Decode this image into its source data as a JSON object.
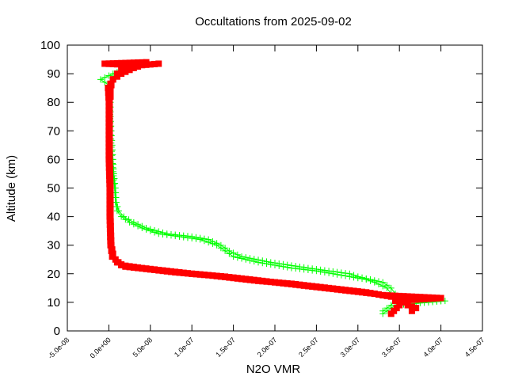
{
  "chart_data": {
    "type": "scatter",
    "title": "Occultations from 2025-09-02",
    "xlabel": "N2O VMR",
    "ylabel": "Altitude (km)",
    "xlim": [
      -5e-08,
      4.5e-07
    ],
    "ylim": [
      0,
      100
    ],
    "xticks": [
      -5e-08,
      0,
      5e-08,
      1e-07,
      1.5e-07,
      2e-07,
      2.5e-07,
      3e-07,
      3.5e-07,
      4e-07,
      4.5e-07
    ],
    "xtick_labels": [
      "-5.0e-08",
      "0.0e+00",
      "5.0e-08",
      "1.0e-07",
      "1.5e-07",
      "2.0e-07",
      "2.5e-07",
      "3.0e-07",
      "3.5e-07",
      "4.0e-07",
      "4.5e-07"
    ],
    "yticks": [
      0,
      10,
      20,
      30,
      40,
      50,
      60,
      70,
      80,
      90,
      100
    ],
    "ytick_labels": [
      "0",
      "10",
      "20",
      "30",
      "40",
      "50",
      "60",
      "70",
      "80",
      "90",
      "100"
    ],
    "grid": false,
    "series": [
      {
        "name": "green-plus",
        "color": "#00ff00",
        "marker": "plus",
        "profiles": [
          [
            [
              92,
              3e-08
            ],
            [
              91,
              1.5e-08
            ],
            [
              90,
              5e-09
            ],
            [
              88,
              -1e-08
            ],
            [
              86,
              0
            ],
            [
              84,
              2e-09
            ],
            [
              80,
              2e-09
            ],
            [
              75,
              2e-09
            ],
            [
              70,
              3e-09
            ],
            [
              65,
              4e-09
            ],
            [
              60,
              5e-09
            ],
            [
              55,
              6e-09
            ],
            [
              50,
              8e-09
            ],
            [
              45,
              9e-09
            ],
            [
              42,
              1.2e-08
            ],
            [
              40,
              1.8e-08
            ],
            [
              38,
              3e-08
            ],
            [
              36,
              4.5e-08
            ],
            [
              34,
              7e-08
            ],
            [
              33,
              1e-07
            ],
            [
              32,
              1.2e-07
            ],
            [
              30,
              1.35e-07
            ],
            [
              28,
              1.45e-07
            ],
            [
              26,
              1.6e-07
            ],
            [
              24,
              1.95e-07
            ],
            [
              22,
              2.4e-07
            ],
            [
              21,
              2.65e-07
            ],
            [
              20,
              2.9e-07
            ],
            [
              19,
              3e-07
            ],
            [
              18,
              3.15e-07
            ],
            [
              17,
              3.3e-07
            ],
            [
              15,
              3.4e-07
            ],
            [
              13,
              3.45e-07
            ],
            [
              11,
              3.5e-07
            ],
            [
              10.5,
              4.05e-07
            ],
            [
              9,
              3.45e-07
            ],
            [
              7,
              3.35e-07
            ],
            [
              6,
              3.3e-07
            ]
          ],
          [
            [
              93,
              3.5e-08
            ],
            [
              91,
              2e-08
            ],
            [
              89,
              5e-09
            ],
            [
              85,
              2e-09
            ],
            [
              80,
              1e-09
            ],
            [
              70,
              2e-09
            ],
            [
              60,
              4e-09
            ],
            [
              50,
              7e-09
            ],
            [
              45,
              8e-09
            ],
            [
              42,
              1e-08
            ],
            [
              40,
              1.5e-08
            ],
            [
              38,
              2.5e-08
            ],
            [
              36,
              4e-08
            ],
            [
              34,
              6e-08
            ],
            [
              32,
              1.1e-07
            ],
            [
              30,
              1.3e-07
            ],
            [
              28,
              1.4e-07
            ],
            [
              26,
              1.5e-07
            ],
            [
              24,
              1.8e-07
            ],
            [
              22,
              2.2e-07
            ],
            [
              21,
              2.5e-07
            ],
            [
              20,
              2.7e-07
            ],
            [
              19,
              2.9e-07
            ],
            [
              18,
              3.1e-07
            ],
            [
              17,
              3.2e-07
            ],
            [
              15,
              3.35e-07
            ],
            [
              13,
              3.4e-07
            ],
            [
              11,
              3.45e-07
            ],
            [
              9,
              3.4e-07
            ],
            [
              7,
              3.3e-07
            ]
          ]
        ]
      },
      {
        "name": "red-square",
        "color": "#ff0000",
        "marker": "square",
        "profiles": [
          [
            [
              94,
              4.5e-08
            ],
            [
              93.5,
              -5e-09
            ],
            [
              93,
              3e-08
            ],
            [
              92,
              2e-08
            ],
            [
              91,
              1.5e-08
            ],
            [
              90,
              1e-08
            ],
            [
              88,
              5e-09
            ],
            [
              86,
              3e-09
            ],
            [
              84,
              2e-09
            ],
            [
              82,
              2e-09
            ],
            [
              80,
              1e-09
            ],
            [
              75,
              1e-09
            ],
            [
              70,
              1e-09
            ],
            [
              65,
              1e-09
            ],
            [
              60,
              1e-09
            ],
            [
              55,
              1.5e-09
            ],
            [
              50,
              2e-09
            ],
            [
              45,
              2e-09
            ],
            [
              40,
              2e-09
            ],
            [
              35,
              2.5e-09
            ],
            [
              30,
              3e-09
            ],
            [
              27,
              5e-09
            ],
            [
              25,
              8e-09
            ],
            [
              23,
              1.5e-08
            ],
            [
              22,
              4e-08
            ],
            [
              21,
              7e-08
            ],
            [
              20,
              1e-07
            ],
            [
              19,
              1.4e-07
            ],
            [
              18,
              1.7e-07
            ],
            [
              17,
              2e-07
            ],
            [
              16,
              2.3e-07
            ],
            [
              15,
              2.6e-07
            ],
            [
              14,
              2.9e-07
            ],
            [
              13,
              3.2e-07
            ],
            [
              12,
              3.4e-07
            ],
            [
              11,
              3.5e-07
            ],
            [
              10,
              3.55e-07
            ],
            [
              9,
              3.6e-07
            ],
            [
              8,
              3.7e-07
            ],
            [
              7,
              3.65e-07
            ]
          ],
          [
            [
              93.5,
              6e-08
            ],
            [
              93,
              4e-08
            ],
            [
              92,
              3e-08
            ],
            [
              90,
              1.5e-08
            ],
            [
              88,
              5e-09
            ],
            [
              85,
              -1e-09
            ],
            [
              80,
              0
            ],
            [
              70,
              0
            ],
            [
              60,
              0
            ],
            [
              50,
              1e-09
            ],
            [
              40,
              1e-09
            ],
            [
              30,
              2e-09
            ],
            [
              26,
              4e-09
            ],
            [
              24,
              1e-08
            ],
            [
              22.5,
              2e-08
            ],
            [
              21.5,
              5e-08
            ],
            [
              20.5,
              8e-08
            ],
            [
              19.5,
              1.2e-07
            ],
            [
              18.5,
              1.5e-07
            ],
            [
              17.5,
              1.8e-07
            ],
            [
              16.5,
              2.2e-07
            ],
            [
              15.5,
              2.5e-07
            ],
            [
              14.5,
              2.8e-07
            ],
            [
              13.5,
              3.1e-07
            ],
            [
              12.5,
              3.3e-07
            ],
            [
              11.5,
              4e-07
            ],
            [
              10.5,
              3.45e-07
            ],
            [
              9,
              3.5e-07
            ],
            [
              6,
              3.4e-07
            ]
          ]
        ]
      }
    ]
  }
}
